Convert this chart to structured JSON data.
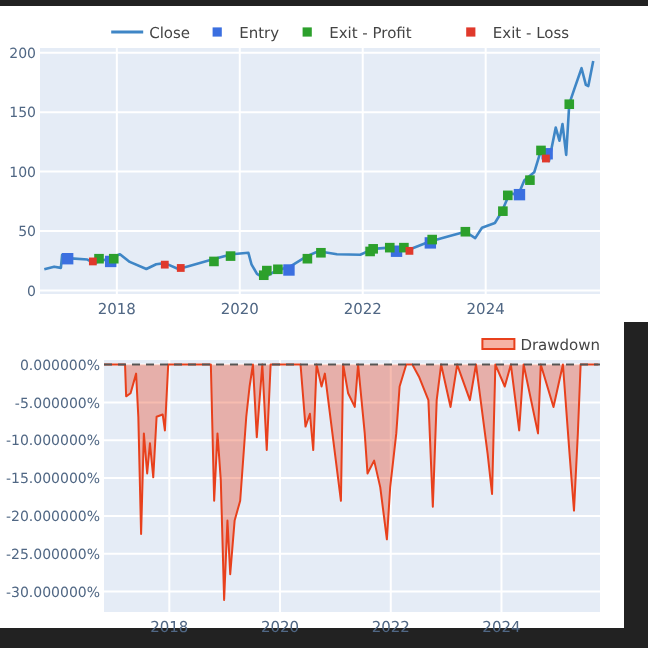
{
  "chart_data": [
    {
      "type": "line",
      "xlim": [
        2016.75,
        2025.86
      ],
      "xticks": [
        2018,
        2020,
        2022,
        2024
      ],
      "ylim": [
        -3,
        204
      ],
      "yticks": [
        0,
        50,
        100,
        150,
        200
      ],
      "grid": true,
      "legend": "top right",
      "series": [
        {
          "name": "Close",
          "color": "#3f86c6",
          "x": [
            2016.82,
            2016.98,
            2017.09,
            2017.11,
            2017.25,
            2017.52,
            2017.63,
            2017.89,
            2018.05,
            2018.21,
            2018.48,
            2018.64,
            2018.78,
            2019.0,
            2019.18,
            2019.55,
            2019.87,
            2020.14,
            2020.19,
            2020.28,
            2020.39,
            2020.57,
            2020.83,
            2021.1,
            2021.28,
            2021.58,
            2021.96,
            2022.17,
            2022.44,
            2022.55,
            2022.76,
            2023.08,
            2023.4,
            2023.67,
            2023.83,
            2023.94,
            2024.15,
            2024.26,
            2024.39,
            2024.53,
            2024.63,
            2024.79,
            2024.9,
            2025.03,
            2025.14,
            2025.2,
            2025.25,
            2025.31,
            2025.36,
            2025.45,
            2025.56,
            2025.63,
            2025.67,
            2025.75
          ],
          "values": [
            17.8,
            20,
            19,
            30,
            27,
            26,
            23,
            27,
            30.5,
            24,
            18,
            22,
            23,
            18,
            20.5,
            26,
            30.5,
            31.7,
            22,
            14,
            10.5,
            16,
            20.5,
            29,
            33,
            30.5,
            30,
            35,
            36,
            33,
            34.4,
            41,
            45.5,
            49.4,
            44,
            52.8,
            56.7,
            66,
            81.7,
            80.6,
            92.8,
            99.4,
            118,
            109,
            137,
            126,
            140,
            114,
            157,
            170.6,
            187,
            173,
            172,
            193
          ]
        },
        {
          "name": "Entry",
          "type": "scatter",
          "marker": "square",
          "color": "#3b6fe0",
          "x": [
            2017.2,
            2017.9,
            2020.8,
            2022.55,
            2023.1,
            2024.55,
            2025.0
          ],
          "values": [
            26.7,
            24.4,
            17.2,
            33,
            40,
            80.6,
            115
          ]
        },
        {
          "name": "Exit - Profit",
          "type": "scatter",
          "marker": "square",
          "color": "#2ca02c",
          "x": [
            2017.71,
            2017.95,
            2019.58,
            2019.85,
            2020.39,
            2020.44,
            2020.62,
            2021.1,
            2021.32,
            2022.12,
            2022.17,
            2022.44,
            2022.67,
            2023.13,
            2023.67,
            2024.28,
            2024.36,
            2024.72,
            2024.9,
            2025.36
          ],
          "values": [
            26.7,
            26.7,
            24.4,
            28.9,
            12.8,
            16.7,
            17.8,
            26.7,
            31.7,
            32.8,
            35,
            36,
            36,
            42.8,
            49.4,
            66.7,
            80,
            92.8,
            117.8,
            156.7
          ]
        },
        {
          "name": "Exit - Loss",
          "type": "scatter",
          "marker": "square",
          "color": "#e0392b",
          "x": [
            2017.61,
            2018.78,
            2019.04,
            2022.76,
            2024.98
          ],
          "values": [
            24.4,
            21.7,
            18.9,
            33.3,
            111
          ]
        }
      ]
    },
    {
      "type": "area",
      "xlim": [
        2016.82,
        2025.78
      ],
      "xticks": [
        2018,
        2020,
        2022,
        2024
      ],
      "ylim": [
        -32.7,
        0.6
      ],
      "yticks": [
        {
          "value": 0,
          "label": "0.000000%"
        },
        {
          "value": -5,
          "label": "-5.000000%"
        },
        {
          "value": -10,
          "label": "-10.000000%"
        },
        {
          "value": -15,
          "label": "-15.000000%"
        },
        {
          "value": -20,
          "label": "-20.000000%"
        },
        {
          "value": -25,
          "label": "-25.000000%"
        },
        {
          "value": -30,
          "label": "-30.000000%"
        }
      ],
      "grid": true,
      "legend": "top right",
      "ref_lines": [
        {
          "axis": "y",
          "value": 0,
          "color": "#555555",
          "line_style": "dashed"
        }
      ],
      "series": [
        {
          "name": "Drawdown",
          "color": "#e8401c",
          "x": [
            2016.82,
            2017.2,
            2017.22,
            2017.3,
            2017.4,
            2017.44,
            2017.49,
            2017.54,
            2017.6,
            2017.65,
            2017.71,
            2017.77,
            2017.88,
            2017.92,
            2017.98,
            2018.75,
            2018.81,
            2018.87,
            2018.93,
            2018.99,
            2019.05,
            2019.1,
            2019.18,
            2019.28,
            2019.39,
            2019.45,
            2019.51,
            2019.58,
            2019.62,
            2019.68,
            2019.76,
            2019.83,
            2020.37,
            2020.46,
            2020.54,
            2020.6,
            2020.66,
            2020.75,
            2020.81,
            2021.1,
            2021.14,
            2021.23,
            2021.35,
            2021.41,
            2021.53,
            2021.58,
            2021.7,
            2021.81,
            2021.93,
            2021.99,
            2022.1,
            2022.16,
            2022.28,
            2022.39,
            2022.51,
            2022.68,
            2022.76,
            2022.83,
            2022.91,
            2023.08,
            2023.2,
            2023.43,
            2023.54,
            2023.75,
            2023.83,
            2023.89,
            2024.06,
            2024.17,
            2024.32,
            2024.4,
            2024.66,
            2024.71,
            2024.94,
            2025.11,
            2025.23,
            2025.31,
            2025.38,
            2025.43,
            2025.75
          ],
          "values": [
            0,
            0,
            -4.2,
            -3.8,
            -1.2,
            -6.9,
            -22.4,
            -9.1,
            -14.4,
            -10.4,
            -14.9,
            -6.9,
            -6.6,
            -8.7,
            0,
            0,
            -18,
            -9.1,
            -15.3,
            -31.1,
            -20.6,
            -27.7,
            -20.6,
            -18,
            -6.9,
            -2.9,
            0,
            -9.6,
            -5.6,
            0,
            -11.3,
            0,
            0,
            -8.2,
            -6.5,
            -11.3,
            0,
            -2.9,
            -1.2,
            -18,
            0,
            -3.8,
            -5.6,
            0,
            -9.1,
            -14.4,
            -12.7,
            -16.2,
            -23.1,
            -16.2,
            -9.1,
            -2.9,
            0,
            0,
            -1.6,
            -4.7,
            -18.8,
            -4.7,
            0,
            -5.6,
            0,
            -4.7,
            0,
            -11.8,
            -17.1,
            0,
            -2.9,
            0,
            -8.7,
            0,
            -9.1,
            0,
            -5.6,
            0,
            -11.8,
            -19.3,
            -9.1,
            0,
            0
          ]
        }
      ]
    }
  ]
}
